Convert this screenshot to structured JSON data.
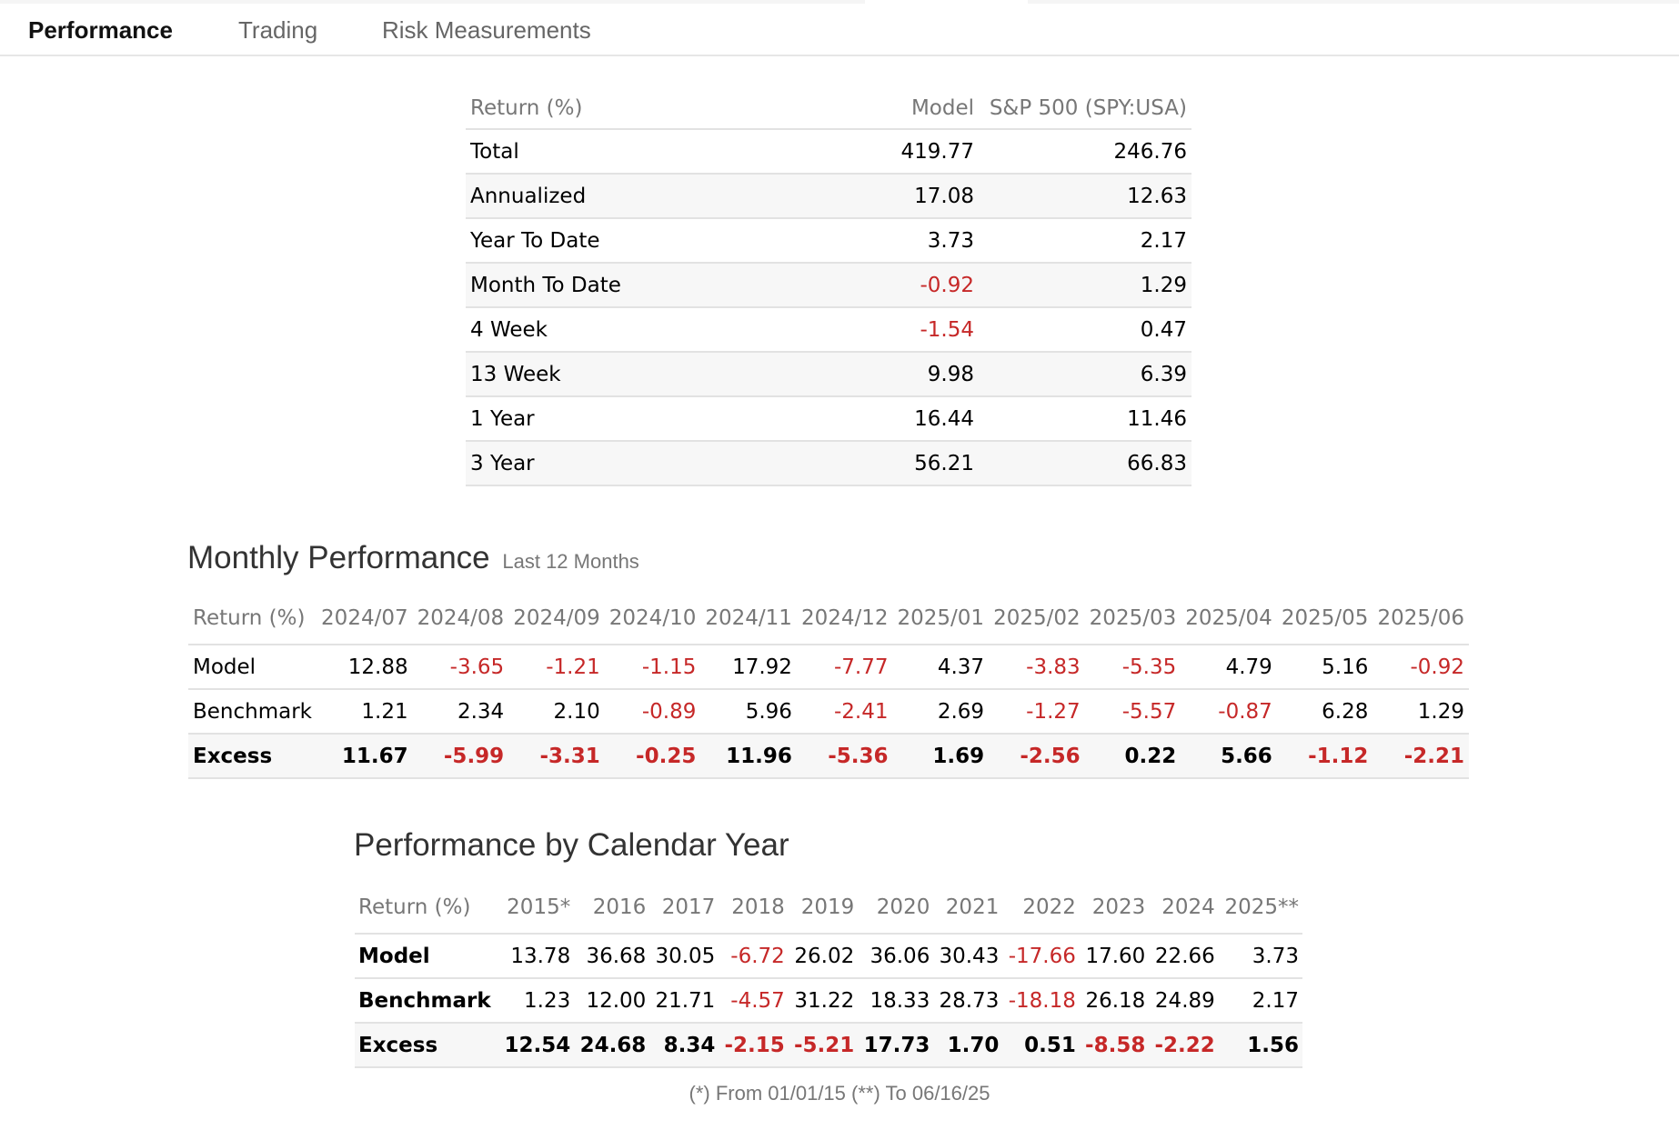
{
  "tabs": [
    "Performance",
    "Trading",
    "Risk Measurements"
  ],
  "returns": {
    "headers": [
      "Return (%)",
      "Model",
      "S&P 500 (SPY:USA)"
    ],
    "rows": [
      [
        "Total",
        "419.77",
        "246.76"
      ],
      [
        "Annualized",
        "17.08",
        "12.63"
      ],
      [
        "Year To Date",
        "3.73",
        "2.17"
      ],
      [
        "Month To Date",
        "-0.92",
        "1.29"
      ],
      [
        "4 Week",
        "-1.54",
        "0.47"
      ],
      [
        "13 Week",
        "9.98",
        "6.39"
      ],
      [
        "1 Year",
        "16.44",
        "11.46"
      ],
      [
        "3 Year",
        "56.21",
        "66.83"
      ]
    ]
  },
  "monthly": {
    "title": "Monthly Performance",
    "subtitle": "Last 12 Months",
    "headers": [
      "Return (%)",
      "2024/07",
      "2024/08",
      "2024/09",
      "2024/10",
      "2024/11",
      "2024/12",
      "2025/01",
      "2025/02",
      "2025/03",
      "2025/04",
      "2025/05",
      "2025/06"
    ],
    "rows": [
      [
        "Model",
        "12.88",
        "-3.65",
        "-1.21",
        "-1.15",
        "17.92",
        "-7.77",
        "4.37",
        "-3.83",
        "-5.35",
        "4.79",
        "5.16",
        "-0.92"
      ],
      [
        "Benchmark",
        "1.21",
        "2.34",
        "2.10",
        "-0.89",
        "5.96",
        "-2.41",
        "2.69",
        "-1.27",
        "-5.57",
        "-0.87",
        "6.28",
        "1.29"
      ],
      [
        "Excess",
        "11.67",
        "-5.99",
        "-3.31",
        "-0.25",
        "11.96",
        "-5.36",
        "1.69",
        "-2.56",
        "0.22",
        "5.66",
        "-1.12",
        "-2.21"
      ]
    ]
  },
  "calendar": {
    "title": "Performance by Calendar Year",
    "headers": [
      "Return (%)",
      "2015*",
      "2016",
      "2017",
      "2018",
      "2019",
      "2020",
      "2021",
      "2022",
      "2023",
      "2024",
      "2025**"
    ],
    "rows": [
      [
        "Model",
        "13.78",
        "36.68",
        "30.05",
        "-6.72",
        "26.02",
        "36.06",
        "30.43",
        "-17.66",
        "17.60",
        "22.66",
        "3.73"
      ],
      [
        "Benchmark",
        "1.23",
        "12.00",
        "21.71",
        "-4.57",
        "31.22",
        "18.33",
        "28.73",
        "-18.18",
        "26.18",
        "24.89",
        "2.17"
      ],
      [
        "Excess",
        "12.54",
        "24.68",
        "8.34",
        "-2.15",
        "-5.21",
        "17.73",
        "1.70",
        "0.51",
        "-8.58",
        "-2.22",
        "1.56"
      ]
    ]
  },
  "footnote": "(*) From 01/01/15  (**) To 06/16/25",
  "colors": {
    "negative": "#c62828",
    "header_text": "#777777",
    "border": "#e2e2e2",
    "alt_row": "#f7f7f7"
  }
}
